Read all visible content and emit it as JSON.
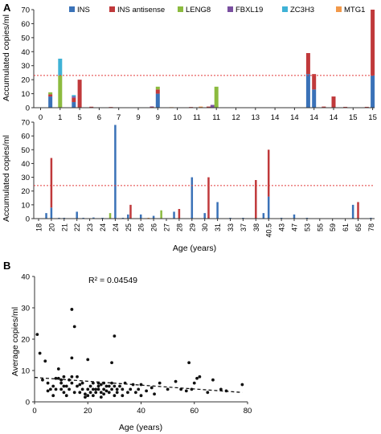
{
  "panels": {
    "A": {
      "letter": "A",
      "ylabel_top": "Accumulated copies/ml",
      "ylabel_bottom": "Accumulated copies/ml",
      "xlabel": "Age (years)"
    },
    "B": {
      "letter": "B",
      "ylabel": "Average copies/ml",
      "xlabel": "Age (years)",
      "r2": "R² = 0.04549"
    }
  },
  "colors": {
    "INS": "#3a72b8",
    "INS antisense": "#c0393b",
    "LENG8": "#8cbb3f",
    "FBXL19": "#7a4fa0",
    "ZC3H3": "#3fb2d6",
    "MTG1": "#f2994a",
    "threshold": "#e23b3b",
    "axis": "#333333",
    "points": "#111111"
  },
  "chart_data": [
    {
      "type": "bar",
      "stacked": true,
      "legend": [
        "INS",
        "INS antisense",
        "LENG8",
        "FBXL19",
        "ZC3H3",
        "MTG1"
      ],
      "legend_placement": "top",
      "x_tick_labels": [
        "0",
        "1",
        "5",
        "6",
        "7",
        "9",
        "9",
        "10",
        "11",
        "11",
        "12",
        "13",
        "14",
        "14",
        "14",
        "14",
        "15",
        "15"
      ],
      "ylim": [
        0,
        70
      ],
      "yticks": [
        0,
        10,
        20,
        30,
        40,
        50,
        60,
        70
      ],
      "threshold": 23,
      "ylabel": "Accumulated copies/ml",
      "bars": [
        {
          "x": 0.5,
          "INS": 8,
          "INS antisense": 1.5,
          "LENG8": 1.5,
          "FBXL19": 0,
          "ZC3H3": 0,
          "MTG1": 0
        },
        {
          "x": 1.0,
          "INS": 0,
          "INS antisense": 0,
          "LENG8": 23,
          "FBXL19": 0,
          "ZC3H3": 12,
          "MTG1": 0
        },
        {
          "x": 1.7,
          "INS": 4,
          "INS antisense": 3,
          "LENG8": 0,
          "FBXL19": 1,
          "ZC3H3": 1,
          "MTG1": 0
        },
        {
          "x": 2.0,
          "INS": 0,
          "INS antisense": 20,
          "LENG8": 0,
          "FBXL19": 0,
          "ZC3H3": 0,
          "MTG1": 0
        },
        {
          "x": 2.6,
          "INS": 0,
          "INS antisense": 0.7,
          "LENG8": 0,
          "FBXL19": 0,
          "ZC3H3": 0,
          "MTG1": 0
        },
        {
          "x": 3.6,
          "INS": 0,
          "INS antisense": 0.5,
          "LENG8": 0,
          "FBXL19": 0,
          "ZC3H3": 0,
          "MTG1": 0
        },
        {
          "x": 5.7,
          "INS": 0,
          "INS antisense": 0.6,
          "LENG8": 0,
          "FBXL19": 0.3,
          "ZC3H3": 0,
          "MTG1": 0
        },
        {
          "x": 6.0,
          "INS": 10,
          "INS antisense": 3,
          "LENG8": 2,
          "FBXL19": 0,
          "ZC3H3": 0,
          "MTG1": 0
        },
        {
          "x": 6.7,
          "INS": 0,
          "INS antisense": 0,
          "LENG8": 0,
          "FBXL19": 0,
          "ZC3H3": 0,
          "MTG1": 0.4
        },
        {
          "x": 7.7,
          "INS": 0,
          "INS antisense": 0.5,
          "LENG8": 0,
          "FBXL19": 0,
          "ZC3H3": 0,
          "MTG1": 0
        },
        {
          "x": 8.2,
          "INS": 0,
          "INS antisense": 0,
          "LENG8": 0,
          "FBXL19": 0,
          "ZC3H3": 0,
          "MTG1": 0.8
        },
        {
          "x": 8.6,
          "INS": 0,
          "INS antisense": 0.8,
          "LENG8": 0,
          "FBXL19": 0,
          "ZC3H3": 0,
          "MTG1": 0
        },
        {
          "x": 8.8,
          "INS": 0,
          "INS antisense": 0,
          "LENG8": 0,
          "FBXL19": 2,
          "ZC3H3": 0,
          "MTG1": 0
        },
        {
          "x": 9.0,
          "INS": 0,
          "INS antisense": 0,
          "LENG8": 15,
          "FBXL19": 0,
          "ZC3H3": 0,
          "MTG1": 0
        },
        {
          "x": 13.7,
          "INS": 24,
          "INS antisense": 15,
          "LENG8": 0,
          "FBXL19": 0,
          "ZC3H3": 0,
          "MTG1": 0
        },
        {
          "x": 14.0,
          "INS": 13,
          "INS antisense": 11,
          "LENG8": 0,
          "FBXL19": 0,
          "ZC3H3": 0,
          "MTG1": 0
        },
        {
          "x": 14.5,
          "INS": 0,
          "INS antisense": 0.8,
          "LENG8": 0,
          "FBXL19": 0,
          "ZC3H3": 0,
          "MTG1": 0
        },
        {
          "x": 15.0,
          "INS": 0,
          "INS antisense": 8,
          "LENG8": 0,
          "FBXL19": 0,
          "ZC3H3": 0,
          "MTG1": 0
        },
        {
          "x": 15.6,
          "INS": 0,
          "INS antisense": 0.6,
          "LENG8": 0,
          "FBXL19": 0,
          "ZC3H3": 0,
          "MTG1": 0
        },
        {
          "x": 16.7,
          "INS": 0,
          "INS antisense": 0.6,
          "LENG8": 0,
          "FBXL19": 0,
          "ZC3H3": 0,
          "MTG1": 0
        },
        {
          "x": 17.0,
          "INS": 23,
          "INS antisense": 47,
          "LENG8": 0,
          "FBXL19": 0,
          "ZC3H3": 0,
          "MTG1": 0
        }
      ]
    },
    {
      "type": "bar",
      "stacked": true,
      "x_tick_labels": [
        "18",
        "20",
        "21",
        "22",
        "23",
        "24",
        "24",
        "25",
        "26",
        "26",
        "27",
        "28",
        "29",
        "30",
        "31",
        "33",
        "37",
        "38",
        "40.5",
        "43",
        "47",
        "53",
        "55",
        "59",
        "61",
        "65",
        "78"
      ],
      "ylim": [
        0,
        70
      ],
      "yticks": [
        0,
        10,
        20,
        30,
        40,
        50,
        60,
        70
      ],
      "threshold": 24,
      "xlabel": "Age (years)",
      "ylabel": "Accumulated copies/ml",
      "bars": [
        {
          "x": 0.6,
          "INS": 4,
          "INS antisense": 0,
          "LENG8": 0,
          "FBXL19": 0,
          "ZC3H3": 0,
          "MTG1": 0
        },
        {
          "x": 1.0,
          "INS": 8,
          "INS antisense": 36,
          "LENG8": 0,
          "FBXL19": 0,
          "ZC3H3": 0,
          "MTG1": 0
        },
        {
          "x": 1.6,
          "INS": 0.6,
          "INS antisense": 0,
          "LENG8": 0,
          "FBXL19": 0,
          "ZC3H3": 0,
          "MTG1": 0
        },
        {
          "x": 2.0,
          "INS": 0.6,
          "INS antisense": 0,
          "LENG8": 0,
          "FBXL19": 0,
          "ZC3H3": 0,
          "MTG1": 0
        },
        {
          "x": 3.0,
          "INS": 5,
          "INS antisense": 0,
          "LENG8": 0,
          "FBXL19": 0,
          "ZC3H3": 0,
          "MTG1": 0
        },
        {
          "x": 3.5,
          "INS": 0.6,
          "INS antisense": 0,
          "LENG8": 0,
          "FBXL19": 0,
          "ZC3H3": 0,
          "MTG1": 0
        },
        {
          "x": 4.3,
          "INS": 0.8,
          "INS antisense": 0,
          "LENG8": 0,
          "FBXL19": 0,
          "ZC3H3": 0,
          "MTG1": 0
        },
        {
          "x": 5.0,
          "INS": 0.6,
          "INS antisense": 0,
          "LENG8": 0,
          "FBXL19": 0,
          "ZC3H3": 0,
          "MTG1": 0
        },
        {
          "x": 5.6,
          "INS": 0,
          "INS antisense": 0,
          "LENG8": 4,
          "FBXL19": 0,
          "ZC3H3": 0,
          "MTG1": 0
        },
        {
          "x": 6.0,
          "INS": 68,
          "INS antisense": 0,
          "LENG8": 0,
          "FBXL19": 0,
          "ZC3H3": 0,
          "MTG1": 0
        },
        {
          "x": 6.6,
          "INS": 0.6,
          "INS antisense": 0,
          "LENG8": 0,
          "FBXL19": 0,
          "ZC3H3": 0,
          "MTG1": 0
        },
        {
          "x": 7.0,
          "INS": 3,
          "INS antisense": 0,
          "LENG8": 0,
          "FBXL19": 0,
          "ZC3H3": 0,
          "MTG1": 0
        },
        {
          "x": 7.2,
          "INS": 0,
          "INS antisense": 10,
          "LENG8": 0,
          "FBXL19": 0,
          "ZC3H3": 0,
          "MTG1": 0
        },
        {
          "x": 8.0,
          "INS": 3,
          "INS antisense": 0,
          "LENG8": 0,
          "FBXL19": 0,
          "ZC3H3": 0,
          "MTG1": 0
        },
        {
          "x": 8.6,
          "INS": 0,
          "INS antisense": 0,
          "LENG8": 0,
          "FBXL19": 0,
          "ZC3H3": 0,
          "MTG1": 0.6
        },
        {
          "x": 9.0,
          "INS": 2,
          "INS antisense": 0,
          "LENG8": 0,
          "FBXL19": 0,
          "ZC3H3": 0,
          "MTG1": 0
        },
        {
          "x": 9.6,
          "INS": 0,
          "INS antisense": 0,
          "LENG8": 6,
          "FBXL19": 0,
          "ZC3H3": 0,
          "MTG1": 0
        },
        {
          "x": 10.6,
          "INS": 5,
          "INS antisense": 0,
          "LENG8": 0,
          "FBXL19": 0,
          "ZC3H3": 0,
          "MTG1": 0
        },
        {
          "x": 11.0,
          "INS": 0,
          "INS antisense": 7,
          "LENG8": 0,
          "FBXL19": 0,
          "ZC3H3": 0,
          "MTG1": 0
        },
        {
          "x": 12.0,
          "INS": 30,
          "INS antisense": 0,
          "LENG8": 0,
          "FBXL19": 0,
          "ZC3H3": 0,
          "MTG1": 0
        },
        {
          "x": 13.0,
          "INS": 4,
          "INS antisense": 0,
          "LENG8": 0,
          "FBXL19": 0,
          "ZC3H3": 0,
          "MTG1": 0
        },
        {
          "x": 13.3,
          "INS": 0,
          "INS antisense": 30,
          "LENG8": 0,
          "FBXL19": 0,
          "ZC3H3": 0,
          "MTG1": 0
        },
        {
          "x": 14.0,
          "INS": 12,
          "INS antisense": 0,
          "LENG8": 0,
          "FBXL19": 0,
          "ZC3H3": 0,
          "MTG1": 0
        },
        {
          "x": 15.0,
          "INS": 0.6,
          "INS antisense": 0,
          "LENG8": 0,
          "FBXL19": 0,
          "ZC3H3": 0,
          "MTG1": 0
        },
        {
          "x": 16.0,
          "INS": 0.6,
          "INS antisense": 0,
          "LENG8": 0,
          "FBXL19": 0,
          "ZC3H3": 0,
          "MTG1": 0
        },
        {
          "x": 17.0,
          "INS": 0,
          "INS antisense": 28,
          "LENG8": 0,
          "FBXL19": 0,
          "ZC3H3": 0,
          "MTG1": 0
        },
        {
          "x": 17.6,
          "INS": 4,
          "INS antisense": 0,
          "LENG8": 0,
          "FBXL19": 0,
          "ZC3H3": 0,
          "MTG1": 0
        },
        {
          "x": 18.0,
          "INS": 16,
          "INS antisense": 34,
          "LENG8": 0,
          "FBXL19": 0,
          "ZC3H3": 0,
          "MTG1": 0
        },
        {
          "x": 19.0,
          "INS": 0.6,
          "INS antisense": 0,
          "LENG8": 0,
          "FBXL19": 0,
          "ZC3H3": 0,
          "MTG1": 0
        },
        {
          "x": 20.0,
          "INS": 3,
          "INS antisense": 0,
          "LENG8": 0,
          "FBXL19": 0,
          "ZC3H3": 0,
          "MTG1": 0
        },
        {
          "x": 21.0,
          "INS": 0.6,
          "INS antisense": 0,
          "LENG8": 0,
          "FBXL19": 0,
          "ZC3H3": 0,
          "MTG1": 0
        },
        {
          "x": 24.6,
          "INS": 10,
          "INS antisense": 0,
          "LENG8": 0,
          "FBXL19": 0,
          "ZC3H3": 0,
          "MTG1": 0
        },
        {
          "x": 25.0,
          "INS": 0,
          "INS antisense": 12,
          "LENG8": 0,
          "FBXL19": 0,
          "ZC3H3": 0,
          "MTG1": 0
        },
        {
          "x": 26.0,
          "INS": 0.6,
          "INS antisense": 0,
          "LENG8": 0,
          "FBXL19": 0,
          "ZC3H3": 0,
          "MTG1": 0
        }
      ]
    },
    {
      "type": "scatter",
      "xlabel": "Age (years)",
      "ylabel": "Average copies/ml",
      "xlim": [
        0,
        80
      ],
      "ylim": [
        0,
        40
      ],
      "xticks": [
        0,
        20,
        40,
        60,
        80
      ],
      "yticks": [
        0,
        10,
        20,
        30,
        40
      ],
      "annotation": "R² = 0.04549",
      "trendline": {
        "style": "dashed",
        "x": [
          0,
          78
        ],
        "y": [
          7.8,
          3.0
        ]
      },
      "points": [
        [
          1,
          21.5
        ],
        [
          2,
          15.5
        ],
        [
          3,
          7
        ],
        [
          4,
          13
        ],
        [
          5,
          6
        ],
        [
          5,
          3.5
        ],
        [
          6,
          4
        ],
        [
          7,
          5
        ],
        [
          7,
          2
        ],
        [
          8,
          7.5
        ],
        [
          8,
          4
        ],
        [
          9,
          10.5
        ],
        [
          9,
          7.5
        ],
        [
          10,
          7
        ],
        [
          10,
          6
        ],
        [
          10,
          4
        ],
        [
          11,
          8
        ],
        [
          11,
          5
        ],
        [
          11,
          3
        ],
        [
          12,
          5
        ],
        [
          12,
          2
        ],
        [
          13,
          7
        ],
        [
          13,
          4
        ],
        [
          14,
          29.5
        ],
        [
          14,
          14
        ],
        [
          14,
          8
        ],
        [
          14,
          6
        ],
        [
          15,
          24
        ],
        [
          15,
          3
        ],
        [
          16,
          5
        ],
        [
          16,
          8
        ],
        [
          17,
          5.5
        ],
        [
          17,
          3
        ],
        [
          18,
          6
        ],
        [
          18,
          4
        ],
        [
          19,
          2.5
        ],
        [
          19,
          1.5
        ],
        [
          20,
          13.5
        ],
        [
          20,
          4
        ],
        [
          20,
          2
        ],
        [
          21,
          5
        ],
        [
          21,
          3
        ],
        [
          22,
          6
        ],
        [
          22,
          4
        ],
        [
          22,
          2
        ],
        [
          23,
          4
        ],
        [
          23,
          3
        ],
        [
          24,
          6
        ],
        [
          24,
          5
        ],
        [
          24,
          4
        ],
        [
          25,
          5.5
        ],
        [
          25,
          3
        ],
        [
          25,
          1.5
        ],
        [
          26,
          6
        ],
        [
          26,
          4
        ],
        [
          26,
          2.5
        ],
        [
          27,
          5
        ],
        [
          27,
          3.5
        ],
        [
          28,
          5
        ],
        [
          28,
          3
        ],
        [
          29,
          12.5
        ],
        [
          29,
          6
        ],
        [
          29,
          4
        ],
        [
          30,
          21
        ],
        [
          30,
          5
        ],
        [
          30,
          2
        ],
        [
          31,
          4
        ],
        [
          31,
          3
        ],
        [
          32,
          5
        ],
        [
          33,
          4
        ],
        [
          33,
          2
        ],
        [
          34,
          6
        ],
        [
          35,
          3
        ],
        [
          36,
          4
        ],
        [
          37,
          5.5
        ],
        [
          38,
          3
        ],
        [
          39,
          4
        ],
        [
          40,
          5.5
        ],
        [
          40,
          2
        ],
        [
          42,
          3.5
        ],
        [
          44,
          4.5
        ],
        [
          45,
          2.5
        ],
        [
          47,
          6
        ],
        [
          50,
          4
        ],
        [
          53,
          6.5
        ],
        [
          55,
          4
        ],
        [
          57,
          3.5
        ],
        [
          58,
          12.5
        ],
        [
          59,
          4
        ],
        [
          60,
          6
        ],
        [
          61,
          7.5
        ],
        [
          62,
          8
        ],
        [
          65,
          3
        ],
        [
          67,
          7
        ],
        [
          70,
          4
        ],
        [
          72,
          3.5
        ],
        [
          78,
          5.5
        ]
      ]
    }
  ]
}
